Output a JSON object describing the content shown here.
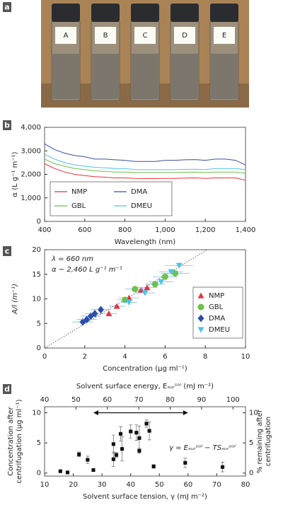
{
  "photo": {
    "label": "a",
    "vials": [
      "A",
      "B",
      "C",
      "D",
      "E"
    ]
  },
  "chart_data": [
    {
      "type": "line",
      "label": "b",
      "xlabel": "Wavelength (nm)",
      "ylabel": "α (L g⁻¹ m⁻¹)",
      "x": [
        400,
        450,
        500,
        550,
        600,
        650,
        700,
        750,
        800,
        850,
        900,
        950,
        1000,
        1050,
        1100,
        1150,
        1200,
        1250,
        1300,
        1350,
        1400
      ],
      "xlim": [
        400,
        1400
      ],
      "xticks": [
        400,
        600,
        800,
        {
          "value": 1000,
          "label": "1,000"
        },
        {
          "value": 1200,
          "label": "1,200"
        },
        {
          "value": 1400,
          "label": "1,400"
        }
      ],
      "ylim": [
        0,
        4000
      ],
      "yticks": [
        0,
        {
          "value": 1000,
          "label": "1,000"
        },
        {
          "value": 2000,
          "label": "2,000"
        },
        {
          "value": 3000,
          "label": "3,000"
        },
        {
          "value": 4000,
          "label": "4,000"
        }
      ],
      "series": [
        {
          "name": "NMP",
          "color": "#e8323c",
          "values": [
            2450,
            2250,
            2100,
            2000,
            1950,
            1900,
            1880,
            1850,
            1850,
            1830,
            1820,
            1820,
            1830,
            1830,
            1840,
            1850,
            1830,
            1850,
            1850,
            1850,
            1750
          ]
        },
        {
          "name": "DMA",
          "color": "#3a4fa0",
          "values": [
            3300,
            3050,
            2900,
            2800,
            2750,
            2650,
            2650,
            2620,
            2600,
            2550,
            2550,
            2550,
            2600,
            2600,
            2620,
            2630,
            2600,
            2650,
            2650,
            2600,
            2400
          ]
        },
        {
          "name": "GBL",
          "color": "#6cc24a",
          "values": [
            2650,
            2450,
            2350,
            2250,
            2200,
            2150,
            2130,
            2100,
            2100,
            2080,
            2080,
            2080,
            2080,
            2080,
            2090,
            2100,
            2080,
            2100,
            2100,
            2100,
            2050
          ]
        },
        {
          "name": "DMEU",
          "color": "#4fc3e8",
          "values": [
            2850,
            2650,
            2500,
            2400,
            2350,
            2300,
            2280,
            2250,
            2250,
            2200,
            2200,
            2200,
            2200,
            2200,
            2210,
            2220,
            2200,
            2250,
            2250,
            2250,
            2200
          ]
        }
      ]
    },
    {
      "type": "scatter",
      "label": "c",
      "xlabel": "Concentration (μg ml⁻¹)",
      "ylabel": "A/l (m⁻¹)",
      "annotations": [
        "λ = 660 nm",
        "α ~ 2,460 L g⁻¹ m⁻¹"
      ],
      "xlim": [
        0,
        10
      ],
      "xticks": [
        0,
        2,
        4,
        6,
        8,
        10
      ],
      "ylim": [
        0,
        20
      ],
      "yticks": [
        0,
        5,
        10,
        15,
        20
      ],
      "fit_line": {
        "x": [
          0,
          8.1
        ],
        "y": [
          0,
          20
        ]
      },
      "series": [
        {
          "name": "NMP",
          "color": "#e8323c",
          "marker": "triangle-up",
          "x": [
            3.2,
            3.6,
            4.2,
            4.8,
            5.1
          ],
          "values": [
            7,
            8.5,
            10.2,
            11.8,
            12.3
          ],
          "xerr": [
            0.4,
            0.4,
            0.5,
            0.5,
            0.5
          ]
        },
        {
          "name": "GBL",
          "color": "#6cc24a",
          "marker": "circle",
          "x": [
            4.0,
            4.5,
            5.5,
            6.0,
            6.5
          ],
          "values": [
            9.8,
            12,
            13,
            14.5,
            15.2
          ],
          "xerr": [
            0.4,
            0.5,
            0.5,
            0.6,
            0.7
          ]
        },
        {
          "name": "DMA",
          "color": "#2b4fa8",
          "marker": "diamond",
          "x": [
            1.9,
            2.1,
            2.3,
            2.5,
            2.8
          ],
          "values": [
            5.3,
            5.8,
            6.5,
            7,
            7.8
          ],
          "xerr": [
            0.5,
            0.5,
            0.5,
            0.5,
            0.5
          ]
        },
        {
          "name": "DMEU",
          "color": "#4fc3e8",
          "marker": "triangle-down",
          "x": [
            4.2,
            5.0,
            5.8,
            6.3,
            6.7
          ],
          "values": [
            9.3,
            11.2,
            13.5,
            15.5,
            16.8
          ],
          "xerr": [
            0.4,
            0.5,
            0.6,
            0.6,
            0.7
          ]
        }
      ]
    },
    {
      "type": "scatter",
      "label": "d",
      "xlabel": "Solvent surface tension, γ (mJ m⁻²)",
      "x2label": "Solvent surface energy, Eₛᵤᵣˢᵒˡ (mJ m⁻²)",
      "ylabel": [
        "Concentration after",
        "centrifugation (μg ml⁻¹)"
      ],
      "y2label": [
        "% remaining after",
        "centrifugation"
      ],
      "annotations": [
        "γ = Eₛᵤᵣˢᵒˡ − TSₛᵤᵣˢᵒˡ"
      ],
      "range_arrow": {
        "x": [
          27,
          60
        ],
        "y": 10
      },
      "xlim": [
        10,
        80
      ],
      "xticks": [
        10,
        20,
        30,
        40,
        50,
        60,
        70,
        80
      ],
      "x2lim": [
        40,
        104
      ],
      "x2ticks": [
        40,
        50,
        60,
        70,
        80,
        90,
        100
      ],
      "ylim": [
        -0.5,
        11
      ],
      "yticks": [
        0,
        5,
        10
      ],
      "y2lim": [
        -0.5,
        11
      ],
      "y2ticks": [
        0,
        5,
        10
      ],
      "series": [
        {
          "color": "#111111",
          "marker": "square",
          "x": [
            15.5,
            18,
            22,
            25,
            27,
            34,
            34,
            35,
            36.5,
            37,
            40,
            42,
            43,
            43,
            45.5,
            46.5,
            48,
            59,
            72
          ],
          "values": [
            0.3,
            0.1,
            3.1,
            2.2,
            0.5,
            4.8,
            2.3,
            3.0,
            6.5,
            4.0,
            6.9,
            6.7,
            5.8,
            3.7,
            8.2,
            7.0,
            1.1,
            1.7,
            1.0
          ],
          "yerr": [
            0,
            0,
            0.4,
            0.6,
            0,
            1.5,
            1.2,
            0.4,
            1.2,
            2,
            1.1,
            1.3,
            2,
            0.4,
            0.6,
            1.5,
            0.3,
            0.8,
            0.8
          ]
        }
      ]
    }
  ]
}
